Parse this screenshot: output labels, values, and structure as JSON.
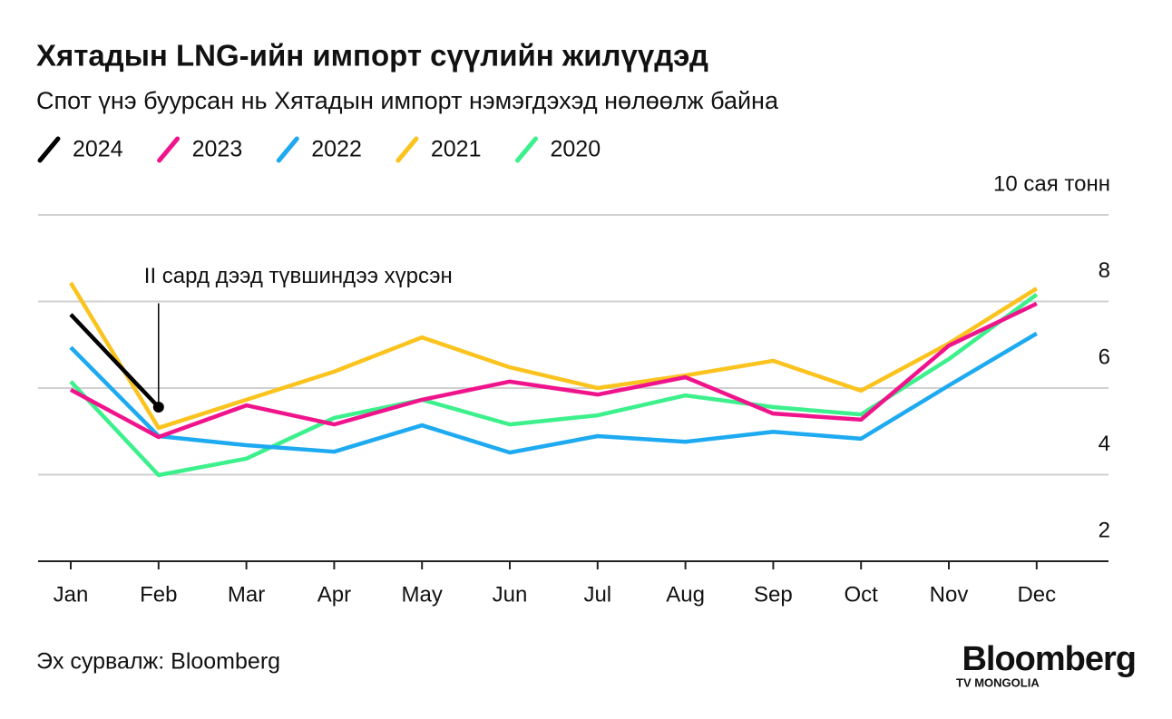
{
  "chart_data": {
    "type": "line",
    "title": "Хятадын LNG-ийн импорт сүүлийн жилүүдэд",
    "subtitle": "Спот үнэ буурсан нь Хятадын импорт нэмэгдэхэд нөлөөлж байна",
    "categories": [
      "Jan",
      "Feb",
      "Mar",
      "Apr",
      "May",
      "Jun",
      "Jul",
      "Aug",
      "Sep",
      "Oct",
      "Nov",
      "Dec"
    ],
    "series": [
      {
        "name": "2024",
        "color": "#000000",
        "values": [
          7.7,
          5.56,
          null,
          null,
          null,
          null,
          null,
          null,
          null,
          null,
          null,
          null
        ]
      },
      {
        "name": "2023",
        "color": "#f0148c",
        "values": [
          5.96,
          4.87,
          5.6,
          5.16,
          5.73,
          6.15,
          5.85,
          6.25,
          5.41,
          5.27,
          6.98,
          7.95
        ]
      },
      {
        "name": "2022",
        "color": "#1eaaf0",
        "values": [
          6.94,
          4.89,
          4.68,
          4.53,
          5.14,
          4.51,
          4.89,
          4.76,
          4.99,
          4.83,
          6.06,
          7.26
        ]
      },
      {
        "name": "2021",
        "color": "#fac31e",
        "values": [
          8.43,
          5.08,
          5.73,
          6.38,
          7.17,
          6.48,
          6.0,
          6.29,
          6.63,
          5.94,
          7.03,
          8.3
        ]
      },
      {
        "name": "2020",
        "color": "#3cf08c",
        "values": [
          6.15,
          3.99,
          4.37,
          5.31,
          5.73,
          5.16,
          5.37,
          5.83,
          5.56,
          5.39,
          6.67,
          8.16
        ]
      }
    ],
    "ylim": [
      2,
      10
    ],
    "yticks": [
      2,
      4,
      6,
      8,
      {
        "value": 10,
        "label": "10 сая тонн"
      }
    ],
    "grid": true,
    "annotation": "II сард дээд түвшиндээ хүрсэн",
    "source": "Эх сурвалж: Bloomberg",
    "logo": "Bloomberg",
    "logo_sub": "TV MONGOLIA"
  }
}
